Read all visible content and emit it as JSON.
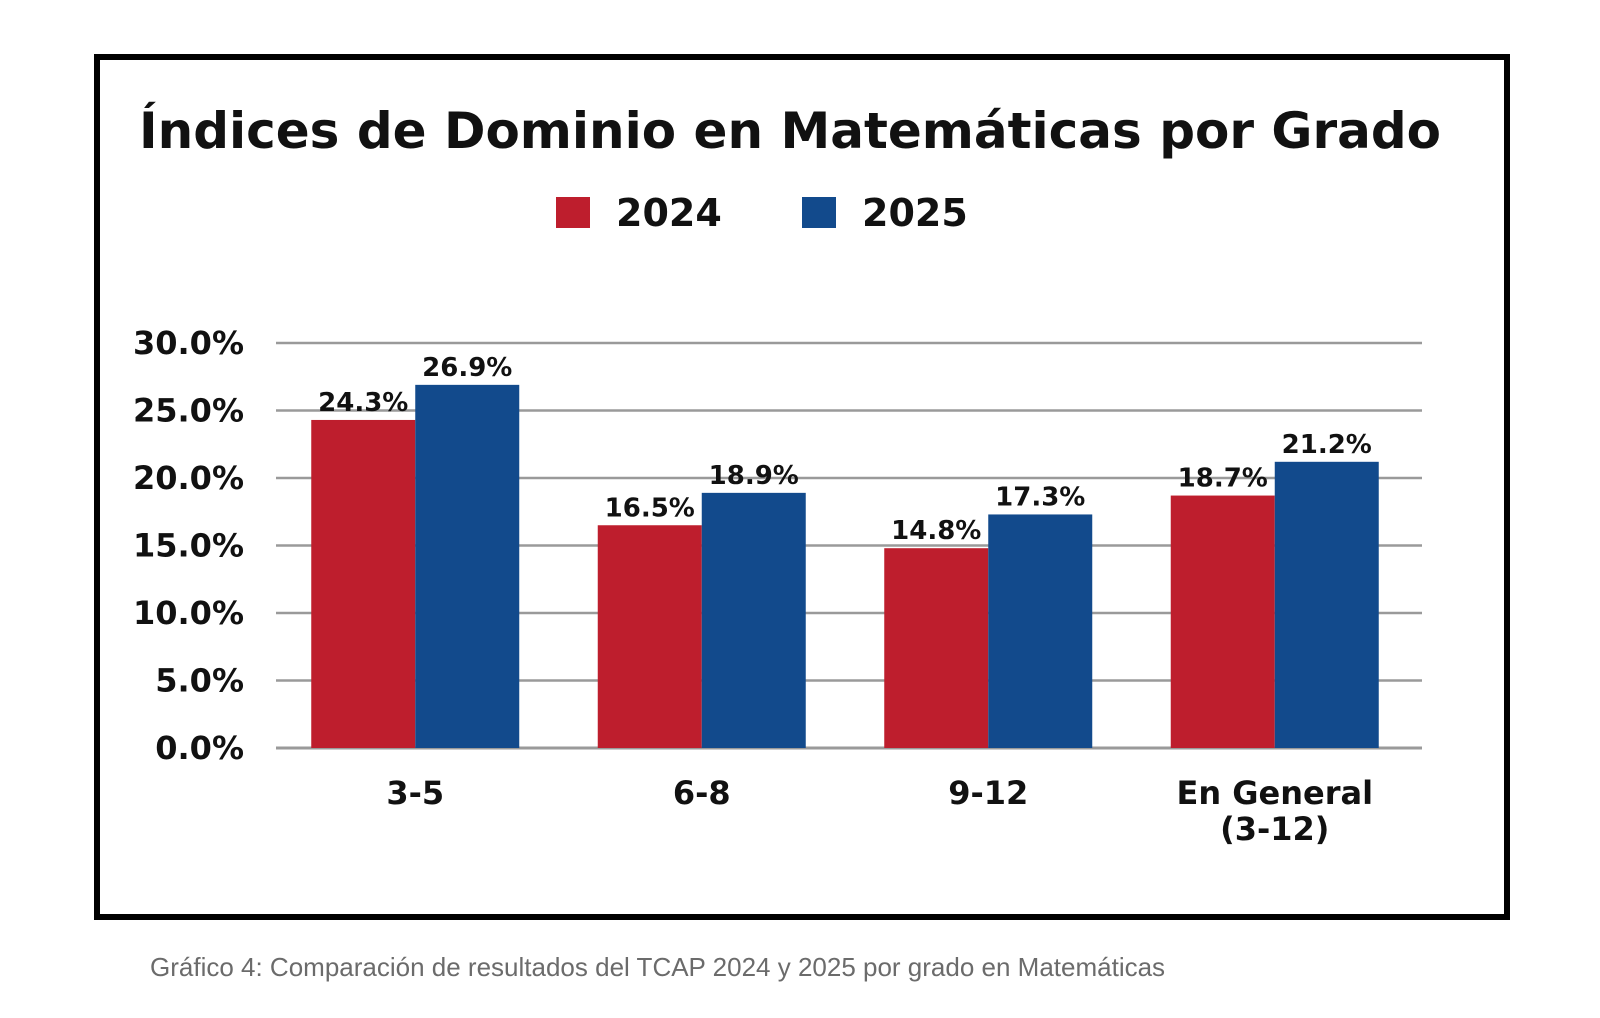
{
  "chart_data": {
    "type": "bar",
    "title": "Índices de Dominio en Matemáticas por Grado",
    "categories": [
      "3-5",
      "6-8",
      "9-12",
      "En General (3-12)"
    ],
    "category_lines": [
      [
        "3-5"
      ],
      [
        "6-8"
      ],
      [
        "9-12"
      ],
      [
        "En General",
        "(3-12)"
      ]
    ],
    "series": [
      {
        "name": "2024",
        "values": [
          24.3,
          16.5,
          14.8,
          18.7
        ],
        "labels": [
          "24.3%",
          "16.5%",
          "14.8%",
          "18.7%"
        ],
        "color": "#be1e2d"
      },
      {
        "name": "2025",
        "values": [
          26.9,
          18.9,
          17.3,
          21.2
        ],
        "labels": [
          "26.9%",
          "18.9%",
          "17.3%",
          "21.2%"
        ],
        "color": "#124a8c"
      }
    ],
    "yticks": [
      0,
      5,
      10,
      15,
      20,
      25,
      30
    ],
    "ytick_labels": [
      "0.0%",
      "5.0%",
      "10.0%",
      "15.0%",
      "20.0%",
      "25.0%",
      "30.0%"
    ],
    "ylim": [
      0,
      30
    ],
    "xlabel": "",
    "ylabel": "",
    "grid": true,
    "legend_position": "top-center",
    "gridline_color": "#9a9a9a"
  },
  "caption": "Gráfico 4: Comparación de resultados del TCAP 2024 y 2025 por grado en Matemáticas"
}
